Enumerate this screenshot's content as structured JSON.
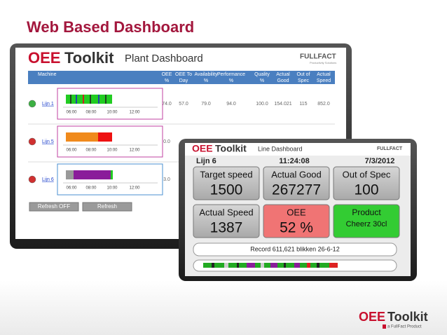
{
  "slide_title": "Web Based Dashboard",
  "plant_dashboard": {
    "logo_oee": "OEE",
    "logo_toolkit": "Toolkit",
    "title": "Plant Dashboard",
    "brand": "FULLFACT",
    "brand_tagline": "Productivity Solutions",
    "machine_header": "Machine",
    "columns": [
      [
        "OEE",
        "%"
      ],
      [
        "OEE To",
        "Day"
      ],
      [
        "Availability",
        "%"
      ],
      [
        "Performance",
        "%"
      ],
      [
        "Quality",
        "%"
      ],
      [
        "Actual",
        "Good"
      ],
      [
        "Out of",
        "Spec"
      ],
      [
        "Actual",
        "Speed"
      ]
    ],
    "rows": [
      {
        "machine": "Lijn 1",
        "values": [
          "74.0",
          "57.0",
          "79.0",
          "94.0",
          "100.0",
          "154.021",
          "115",
          "852.0"
        ]
      },
      {
        "machine": "Lijn 5",
        "values": [
          "0.0"
        ]
      },
      {
        "machine": "Lijn 6",
        "values": [
          "3.0"
        ]
      }
    ],
    "time_labels": [
      "06:00",
      "08:00",
      "10:00",
      "12:00"
    ],
    "buttons": [
      "Refresh OFF",
      "Refresh"
    ]
  },
  "line_dashboard": {
    "logo_oee": "OEE",
    "logo_toolkit": "Toolkit",
    "title": "Line Dashboard",
    "brand": "FULLFACT",
    "line": "Lijn 6",
    "time": "11:24:08",
    "date": "7/3/2012",
    "tiles": [
      {
        "label": "Target speed",
        "value": "1500"
      },
      {
        "label": "Actual Good",
        "value": "267277"
      },
      {
        "label": "Out of Spec",
        "value": "100"
      },
      {
        "label": "Actual Speed",
        "value": "1387"
      },
      {
        "label": "OEE",
        "value": "52 %"
      },
      {
        "label": "Product",
        "value": "Cheerz 30cl"
      }
    ],
    "record": "Record 611,621 blikken 26-6-12"
  },
  "footer_logo": {
    "oee": "OEE",
    "toolkit": "Toolkit",
    "tagline": "a FullFact Product"
  }
}
